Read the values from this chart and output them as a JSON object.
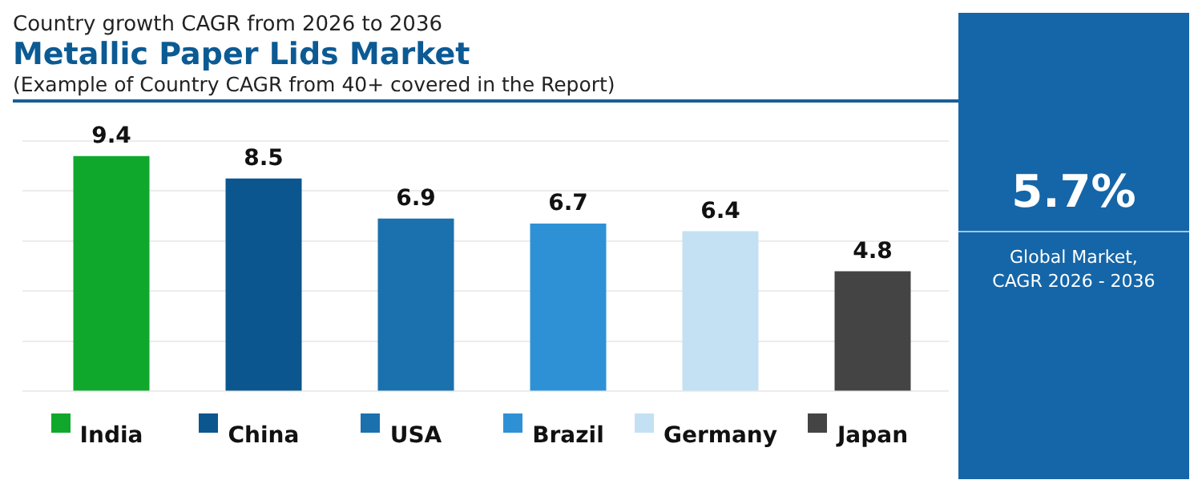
{
  "chart_data": {
    "type": "bar",
    "title": "Metallic Paper Lids Market",
    "subtitle": "Country growth CAGR from 2026 to 2036",
    "annotations": [
      "(Example of Country CAGR from 40+ covered in the Report)",
      "5.7%",
      "Global Market,\nCAGR 2026 - 2036"
    ],
    "categories": [
      "India",
      "China",
      "USA",
      "Brazil",
      "Germany",
      "Japan"
    ],
    "values": [
      9.4,
      8.5,
      6.9,
      6.7,
      6.4,
      4.8
    ],
    "colors": [
      "#10a82c",
      "#0b568e",
      "#1b71ad",
      "#2e91d6",
      "#c3e1f3",
      "#444444"
    ],
    "ylim": [
      0,
      10
    ],
    "yticks": [
      0,
      2,
      4,
      6,
      8,
      10
    ],
    "grid": "y",
    "tick_labels": "x",
    "data_labels": true
  }
}
